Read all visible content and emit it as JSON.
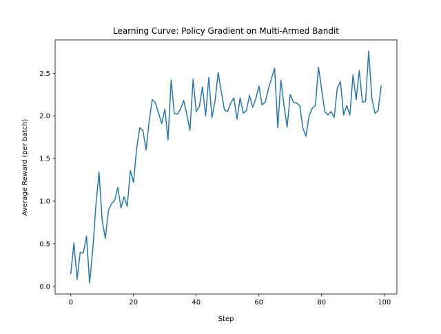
{
  "chart_data": {
    "type": "line",
    "title": "Learning Curve: Policy Gradient on Multi-Armed Bandit",
    "xlabel": "Step",
    "ylabel": "Average Reward (per batch)",
    "xlim": [
      -5,
      104
    ],
    "ylim": [
      -0.09,
      2.89
    ],
    "xticks": [
      0,
      20,
      40,
      60,
      80,
      100
    ],
    "xtick_labels": [
      "0",
      "20",
      "40",
      "60",
      "80",
      "100"
    ],
    "yticks": [
      0.0,
      0.5,
      1.0,
      1.5,
      2.0,
      2.5
    ],
    "ytick_labels": [
      "0.0",
      "0.5",
      "1.0",
      "1.5",
      "2.0",
      "2.5"
    ],
    "grid": false,
    "legend": "none",
    "series": [
      {
        "color": "#1f77b4",
        "x": [
          0,
          1,
          2,
          3,
          4,
          5,
          6,
          7,
          8,
          9,
          10,
          11,
          12,
          13,
          14,
          15,
          16,
          17,
          18,
          19,
          20,
          21,
          22,
          23,
          24,
          25,
          26,
          27,
          28,
          29,
          30,
          31,
          32,
          33,
          34,
          35,
          36,
          37,
          38,
          39,
          40,
          41,
          42,
          43,
          44,
          45,
          46,
          47,
          48,
          49,
          50,
          51,
          52,
          53,
          54,
          55,
          56,
          57,
          58,
          59,
          60,
          61,
          62,
          63,
          64,
          65,
          66,
          67,
          68,
          69,
          70,
          71,
          72,
          73,
          74,
          75,
          76,
          77,
          78,
          79,
          80,
          81,
          82,
          83,
          84,
          85,
          86,
          87,
          88,
          89,
          90,
          91,
          92,
          93,
          94,
          95,
          96,
          97,
          98,
          99
        ],
        "y": [
          0.15,
          0.51,
          0.08,
          0.4,
          0.39,
          0.59,
          0.04,
          0.43,
          0.95,
          1.34,
          0.78,
          0.56,
          0.89,
          0.97,
          1.01,
          1.16,
          0.92,
          1.05,
          0.94,
          1.36,
          1.22,
          1.62,
          1.86,
          1.83,
          1.6,
          1.94,
          2.19,
          2.15,
          2.03,
          1.91,
          2.08,
          1.72,
          2.42,
          2.03,
          2.02,
          2.08,
          2.18,
          2.02,
          1.83,
          2.43,
          2.05,
          2.11,
          2.34,
          2.0,
          2.45,
          1.98,
          2.17,
          2.51,
          2.28,
          2.07,
          2.05,
          2.15,
          2.21,
          1.96,
          2.21,
          2.03,
          2.06,
          2.24,
          2.1,
          2.2,
          2.35,
          2.13,
          2.16,
          2.31,
          2.44,
          2.56,
          1.86,
          2.42,
          2.12,
          1.87,
          2.25,
          2.16,
          2.15,
          2.12,
          1.86,
          1.76,
          2.0,
          2.09,
          2.12,
          2.57,
          2.31,
          2.05,
          2.01,
          2.05,
          1.98,
          2.33,
          2.4,
          2.01,
          2.12,
          2.01,
          2.48,
          2.19,
          2.53,
          2.16,
          2.17,
          2.76,
          2.21,
          2.03,
          2.06,
          2.35
        ]
      }
    ]
  }
}
